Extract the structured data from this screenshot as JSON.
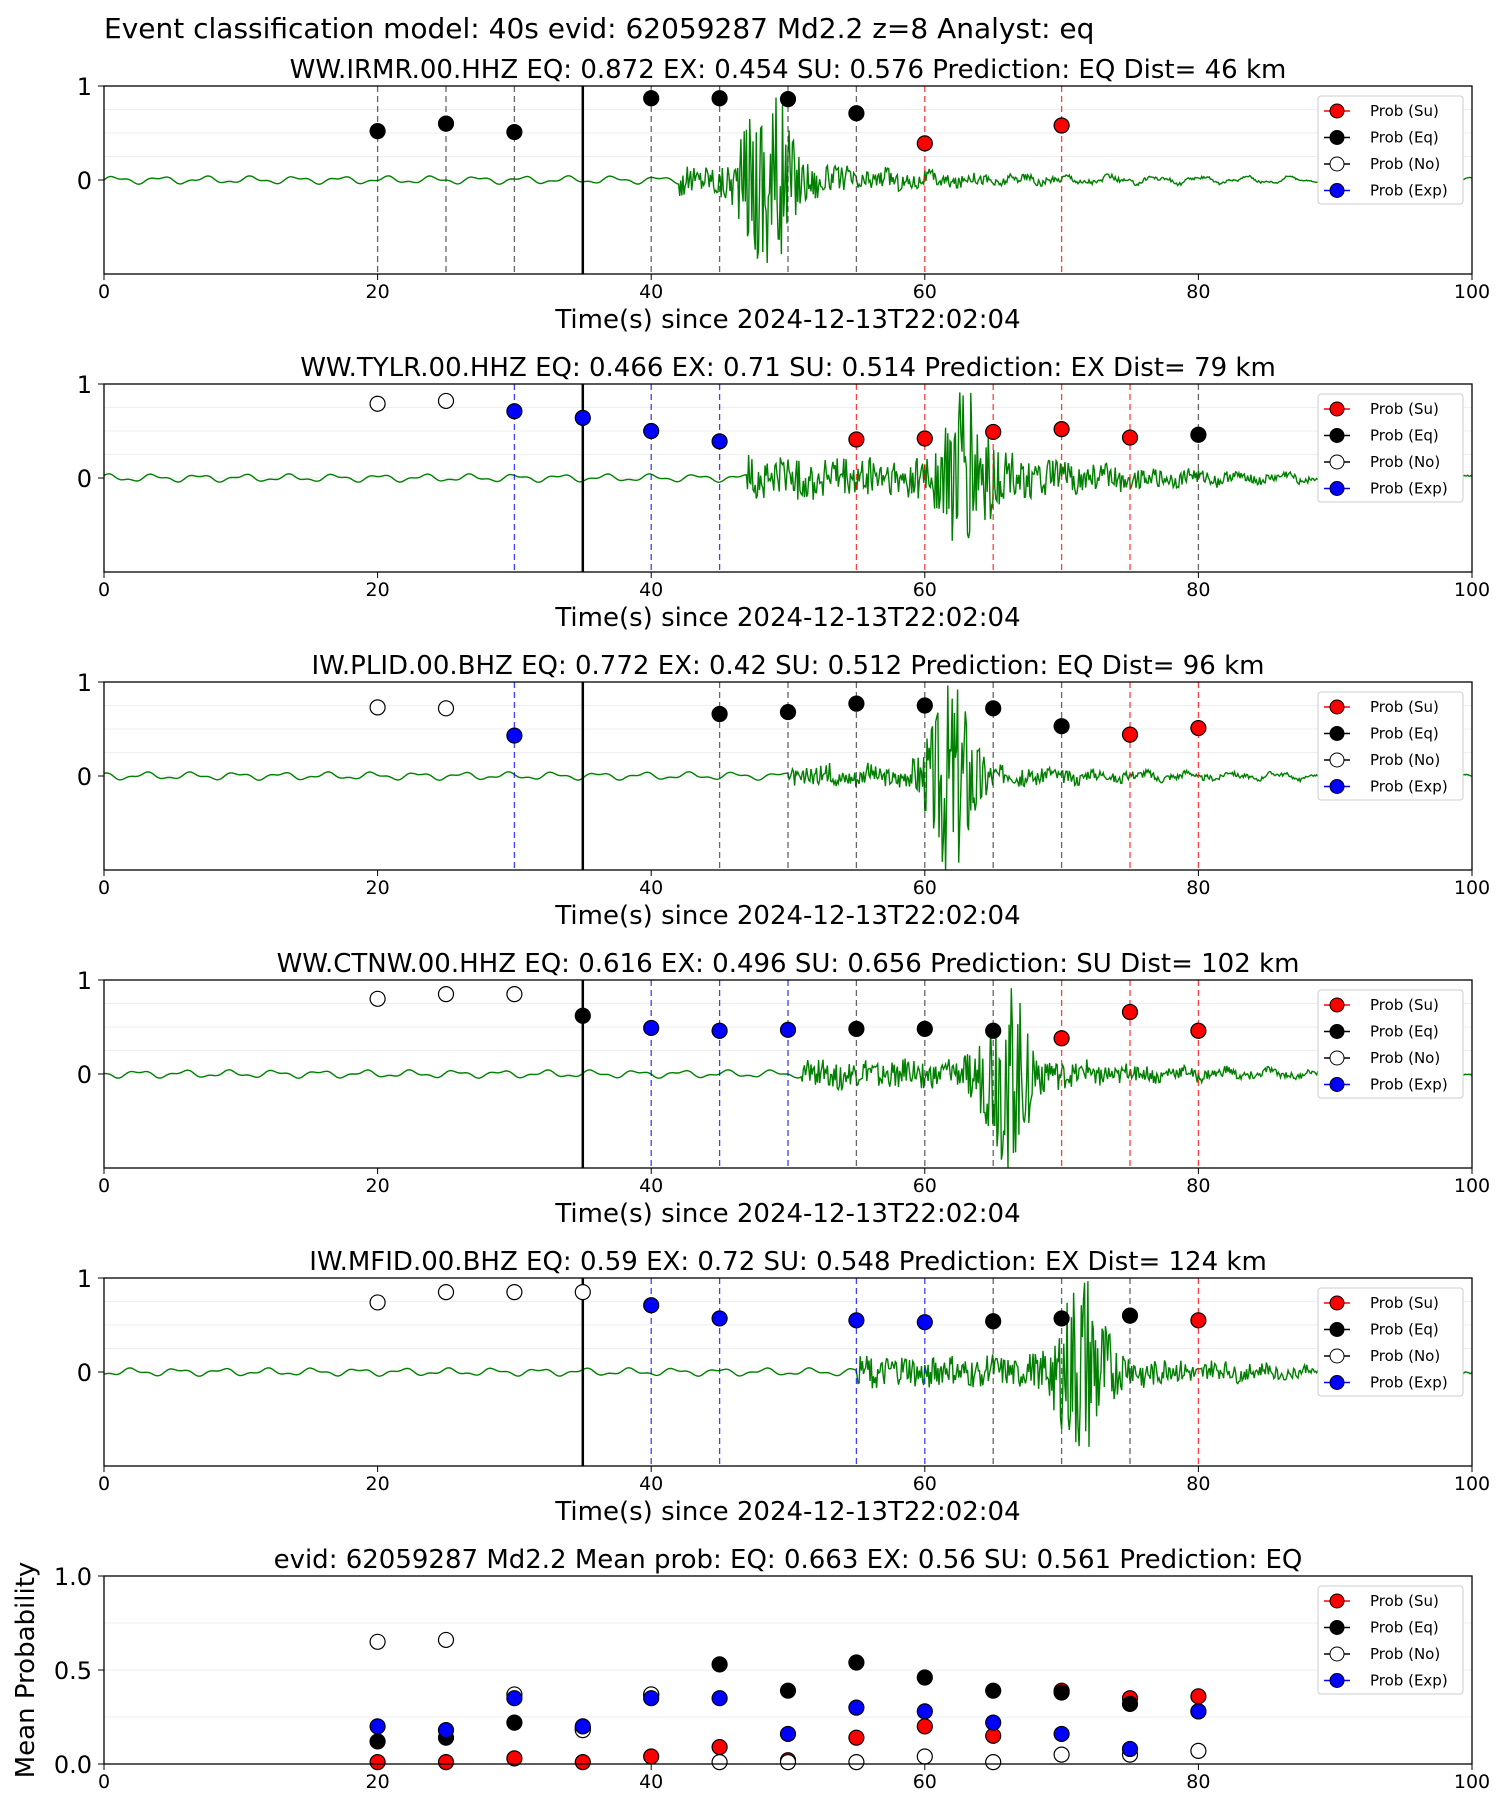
{
  "figure_title": "Event classification model: 40s evid: 62059287 Md2.2 z=8 Analyst: eq",
  "colors": {
    "su": "#ff0000",
    "eq": "#000000",
    "no": "#ffffff",
    "exp": "#0000ff",
    "waveform": "#008000",
    "waveform_tail": "#8fc98f"
  },
  "legend_labels": [
    "Prob (Su)",
    "Prob (Eq)",
    "Prob (No)",
    "Prob (Exp)"
  ],
  "chart_data": [
    {
      "type": "scatter",
      "title": "WW.IRMR.00.HHZ   EQ: 0.872  EX: 0.454  SU: 0.576   Prediction: EQ    Dist= 46 km",
      "xlabel": "Time(s) since 2024-12-13T22:02:04",
      "ylabel": "",
      "xlim": [
        0,
        100
      ],
      "ylim": [
        -1,
        1
      ],
      "xticks": [
        "0",
        "20",
        "40",
        "60",
        "80",
        "100"
      ],
      "yticks": [
        "1",
        "0"
      ],
      "arrival_time": 35,
      "signal_onset": 42,
      "burst_center": 48.5,
      "burst_amp": 1.0,
      "noise_amp": 0.15,
      "points": [
        {
          "x": 20,
          "y": 0.52,
          "class": "eq"
        },
        {
          "x": 25,
          "y": 0.6,
          "class": "eq"
        },
        {
          "x": 30,
          "y": 0.51,
          "class": "eq"
        },
        {
          "x": 40,
          "y": 0.87,
          "class": "eq"
        },
        {
          "x": 45,
          "y": 0.87,
          "class": "eq"
        },
        {
          "x": 50,
          "y": 0.86,
          "class": "eq"
        },
        {
          "x": 55,
          "y": 0.71,
          "class": "eq"
        },
        {
          "x": 60,
          "y": 0.39,
          "class": "su"
        },
        {
          "x": 70,
          "y": 0.58,
          "class": "su"
        }
      ]
    },
    {
      "type": "scatter",
      "title": "WW.TYLR.00.HHZ   EQ: 0.466  EX: 0.71  SU: 0.514   Prediction: EX    Dist= 79 km",
      "xlabel": "Time(s) since 2024-12-13T22:02:04",
      "ylabel": "",
      "xlim": [
        0,
        100
      ],
      "ylim": [
        -1,
        1
      ],
      "xticks": [
        "0",
        "20",
        "40",
        "60",
        "80",
        "100"
      ],
      "yticks": [
        "1",
        "0"
      ],
      "arrival_time": 35,
      "signal_onset": 47,
      "burst_center": 63,
      "burst_amp": 0.75,
      "noise_amp": 0.22,
      "points": [
        {
          "x": 20,
          "y": 0.79,
          "class": "no"
        },
        {
          "x": 25,
          "y": 0.82,
          "class": "no"
        },
        {
          "x": 30,
          "y": 0.71,
          "class": "exp"
        },
        {
          "x": 35,
          "y": 0.64,
          "class": "exp"
        },
        {
          "x": 40,
          "y": 0.5,
          "class": "exp"
        },
        {
          "x": 45,
          "y": 0.39,
          "class": "exp"
        },
        {
          "x": 55,
          "y": 0.41,
          "class": "su"
        },
        {
          "x": 60,
          "y": 0.42,
          "class": "su"
        },
        {
          "x": 65,
          "y": 0.49,
          "class": "su"
        },
        {
          "x": 70,
          "y": 0.52,
          "class": "su"
        },
        {
          "x": 75,
          "y": 0.43,
          "class": "su"
        },
        {
          "x": 80,
          "y": 0.46,
          "class": "eq"
        }
      ]
    },
    {
      "type": "scatter",
      "title": "IW.PLID.00.BHZ   EQ: 0.772  EX: 0.42  SU: 0.512   Prediction: EQ    Dist= 96 km",
      "xlabel": "Time(s) since 2024-12-13T22:02:04",
      "ylabel": "",
      "xlim": [
        0,
        100
      ],
      "ylim": [
        -1,
        1
      ],
      "xticks": [
        "0",
        "20",
        "40",
        "60",
        "80",
        "100"
      ],
      "yticks": [
        "1",
        "0"
      ],
      "arrival_time": 35,
      "signal_onset": 50,
      "burst_center": 62,
      "burst_amp": 1.0,
      "noise_amp": 0.1,
      "points": [
        {
          "x": 20,
          "y": 0.73,
          "class": "no"
        },
        {
          "x": 25,
          "y": 0.72,
          "class": "no"
        },
        {
          "x": 30,
          "y": 0.43,
          "class": "exp"
        },
        {
          "x": 45,
          "y": 0.66,
          "class": "eq"
        },
        {
          "x": 50,
          "y": 0.68,
          "class": "eq"
        },
        {
          "x": 55,
          "y": 0.77,
          "class": "eq"
        },
        {
          "x": 60,
          "y": 0.75,
          "class": "eq"
        },
        {
          "x": 65,
          "y": 0.72,
          "class": "eq"
        },
        {
          "x": 70,
          "y": 0.53,
          "class": "eq"
        },
        {
          "x": 75,
          "y": 0.44,
          "class": "su"
        },
        {
          "x": 80,
          "y": 0.51,
          "class": "su"
        }
      ]
    },
    {
      "type": "scatter",
      "title": "WW.CTNW.00.HHZ   EQ: 0.616  EX: 0.496  SU: 0.656   Prediction: SU    Dist= 102 km",
      "xlabel": "Time(s) since 2024-12-13T22:02:04",
      "ylabel": "",
      "xlim": [
        0,
        100
      ],
      "ylim": [
        -1,
        1
      ],
      "xticks": [
        "0",
        "20",
        "40",
        "60",
        "80",
        "100"
      ],
      "yticks": [
        "1",
        "0"
      ],
      "arrival_time": 35,
      "signal_onset": 51,
      "burst_center": 66,
      "burst_amp": 0.9,
      "noise_amp": 0.14,
      "points": [
        {
          "x": 20,
          "y": 0.8,
          "class": "no"
        },
        {
          "x": 25,
          "y": 0.85,
          "class": "no"
        },
        {
          "x": 30,
          "y": 0.85,
          "class": "no"
        },
        {
          "x": 35,
          "y": 0.62,
          "class": "eq"
        },
        {
          "x": 40,
          "y": 0.49,
          "class": "exp"
        },
        {
          "x": 45,
          "y": 0.46,
          "class": "exp"
        },
        {
          "x": 50,
          "y": 0.47,
          "class": "exp"
        },
        {
          "x": 55,
          "y": 0.48,
          "class": "eq"
        },
        {
          "x": 60,
          "y": 0.48,
          "class": "eq"
        },
        {
          "x": 65,
          "y": 0.46,
          "class": "eq"
        },
        {
          "x": 70,
          "y": 0.38,
          "class": "su"
        },
        {
          "x": 75,
          "y": 0.66,
          "class": "su"
        },
        {
          "x": 80,
          "y": 0.46,
          "class": "su"
        }
      ]
    },
    {
      "type": "scatter",
      "title": "IW.MFID.00.BHZ   EQ: 0.59  EX: 0.72  SU: 0.548   Prediction: EX    Dist= 124 km",
      "xlabel": "Time(s) since 2024-12-13T22:02:04",
      "ylabel": "",
      "xlim": [
        0,
        100
      ],
      "ylim": [
        -1,
        1
      ],
      "xticks": [
        "0",
        "20",
        "40",
        "60",
        "80",
        "100"
      ],
      "yticks": [
        "1",
        "0"
      ],
      "arrival_time": 35,
      "signal_onset": 55,
      "burst_center": 71.5,
      "burst_amp": 0.9,
      "noise_amp": 0.16,
      "points": [
        {
          "x": 20,
          "y": 0.74,
          "class": "no"
        },
        {
          "x": 25,
          "y": 0.85,
          "class": "no"
        },
        {
          "x": 30,
          "y": 0.85,
          "class": "no"
        },
        {
          "x": 35,
          "y": 0.85,
          "class": "no"
        },
        {
          "x": 40,
          "y": 0.71,
          "class": "exp"
        },
        {
          "x": 45,
          "y": 0.57,
          "class": "exp"
        },
        {
          "x": 55,
          "y": 0.55,
          "class": "exp"
        },
        {
          "x": 60,
          "y": 0.53,
          "class": "exp"
        },
        {
          "x": 65,
          "y": 0.54,
          "class": "eq"
        },
        {
          "x": 70,
          "y": 0.57,
          "class": "eq"
        },
        {
          "x": 75,
          "y": 0.6,
          "class": "eq"
        },
        {
          "x": 80,
          "y": 0.55,
          "class": "su"
        }
      ]
    },
    {
      "type": "scatter",
      "title": "evid: 62059287  Md2.2   Mean prob:   EQ: 0.663  EX: 0.56  SU: 0.561   Prediction: EQ",
      "xlabel": "",
      "ylabel": "Mean Probability",
      "xlim": [
        0,
        100
      ],
      "ylim": [
        0,
        1
      ],
      "xticks": [
        "0",
        "20",
        "40",
        "60",
        "80",
        "100"
      ],
      "yticks": [
        "1.0",
        "0.5",
        "0.0"
      ],
      "series": [
        {
          "name": "Prob (Su)",
          "class": "su",
          "x": [
            20,
            25,
            30,
            35,
            40,
            45,
            50,
            55,
            60,
            65,
            70,
            75,
            80
          ],
          "values": [
            0.01,
            0.01,
            0.03,
            0.01,
            0.04,
            0.09,
            0.02,
            0.14,
            0.2,
            0.15,
            0.39,
            0.35,
            0.36
          ]
        },
        {
          "name": "Prob (Eq)",
          "class": "eq",
          "x": [
            20,
            25,
            30,
            35,
            40,
            45,
            50,
            55,
            60,
            65,
            70,
            75,
            80
          ],
          "values": [
            0.12,
            0.14,
            0.22,
            0.19,
            0.37,
            0.53,
            0.39,
            0.54,
            0.46,
            0.39,
            0.38,
            0.32,
            0.28
          ]
        },
        {
          "name": "Prob (No)",
          "class": "no",
          "x": [
            20,
            25,
            30,
            35,
            40,
            45,
            50,
            55,
            60,
            65,
            70,
            75,
            80
          ],
          "values": [
            0.65,
            0.66,
            0.37,
            0.18,
            0.37,
            0.01,
            0.01,
            0.01,
            0.04,
            0.01,
            0.05,
            0.05,
            0.07
          ]
        },
        {
          "name": "Prob (Exp)",
          "class": "exp",
          "x": [
            20,
            25,
            30,
            35,
            40,
            45,
            50,
            55,
            60,
            65,
            70,
            75,
            80
          ],
          "values": [
            0.2,
            0.18,
            0.35,
            0.2,
            0.35,
            0.35,
            0.16,
            0.3,
            0.28,
            0.22,
            0.16,
            0.08,
            0.28
          ]
        }
      ]
    }
  ]
}
